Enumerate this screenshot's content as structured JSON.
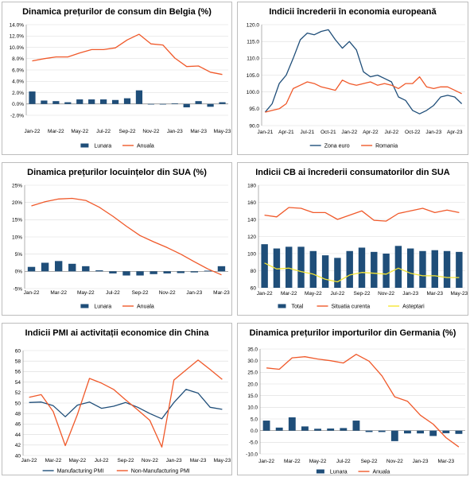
{
  "colors": {
    "blue": "#1f4e79",
    "orange": "#f0592a",
    "yellow": "#f5e533",
    "grid": "#d9d9d9",
    "axis": "#7f7f7f"
  },
  "chart_data": [
    {
      "id": "c1",
      "type": "bar+line",
      "title": "Dinamica prețurilor de consum din Belgia (%)",
      "x_ticks": [
        "Jan-22",
        "Mar-22",
        "May-22",
        "Jul-22",
        "Sep-22",
        "Nov-22",
        "Jan-23",
        "Mar-23",
        "May-23"
      ],
      "n": 17,
      "ylim": [
        -2,
        14
      ],
      "ystep": 2,
      "yfmt": "pct1",
      "grid": true,
      "legend_position": "bottom",
      "series": [
        {
          "name": "Lunara",
          "kind": "bar",
          "color": "#1f4e79",
          "values": [
            2.2,
            0.6,
            0.5,
            0.3,
            0.8,
            0.8,
            0.8,
            0.7,
            1.0,
            2.4,
            -0.1,
            -0.1,
            0.1,
            -0.6,
            0.5,
            -0.5,
            0.3
          ]
        },
        {
          "name": "Anuala",
          "kind": "line",
          "color": "#f0592a",
          "values": [
            7.6,
            8.0,
            8.3,
            8.3,
            9.0,
            9.6,
            9.6,
            9.9,
            11.3,
            12.3,
            10.6,
            10.4,
            8.1,
            6.6,
            6.7,
            5.6,
            5.2
          ]
        }
      ]
    },
    {
      "id": "c2",
      "type": "line",
      "title": "Indicii încrederii în economia europeană",
      "x_ticks": [
        "Jan-21",
        "Apr-21",
        "Jul-21",
        "Oct-21",
        "Jan-22",
        "Apr-22",
        "Jul-22",
        "Oct-22",
        "Jan-23",
        "Apr-23"
      ],
      "n": 29,
      "ylim": [
        90,
        120
      ],
      "ystep": 5,
      "yfmt": "dec1",
      "grid": true,
      "legend_position": "bottom",
      "series": [
        {
          "name": "Zona euro",
          "kind": "line",
          "color": "#1f4e79",
          "values": [
            94.0,
            96.5,
            102.5,
            105.0,
            110.0,
            115.5,
            117.5,
            117.0,
            118.0,
            118.5,
            115.5,
            113.0,
            115.0,
            112.5,
            106.0,
            104.5,
            105.0,
            104.0,
            103.0,
            98.5,
            97.5,
            94.5,
            93.5,
            94.5,
            96.0,
            98.5,
            99.0,
            98.5,
            96.5
          ]
        },
        {
          "name": "Romania",
          "kind": "line",
          "color": "#f0592a",
          "values": [
            94.0,
            94.5,
            95.0,
            96.5,
            101.0,
            102.0,
            103.0,
            102.5,
            101.5,
            101.0,
            100.5,
            103.5,
            102.5,
            102.0,
            102.5,
            103.0,
            102.0,
            102.5,
            102.0,
            101.0,
            102.5,
            102.5,
            104.5,
            101.5,
            101.0,
            101.5,
            101.5,
            100.5,
            99.5
          ]
        }
      ]
    },
    {
      "id": "c3",
      "type": "bar+line",
      "title": "Dinamica prețurilor locuințelor din SUA (%)",
      "x_ticks": [
        "Jan-22",
        "Mar-22",
        "May-22",
        "Jul-22",
        "Sep-22",
        "Nov-22",
        "Jan-23",
        "Mar-23"
      ],
      "n": 15,
      "ylim": [
        -5,
        25
      ],
      "ystep": 5,
      "yfmt": "pct0",
      "grid": true,
      "legend_position": "bottom",
      "series": [
        {
          "name": "Lunara",
          "kind": "bar",
          "color": "#1f4e79",
          "values": [
            1.3,
            2.5,
            3.0,
            2.2,
            1.5,
            0.3,
            -0.6,
            -1.2,
            -1.2,
            -0.8,
            -0.6,
            -0.5,
            -0.3,
            0.2,
            1.5
          ]
        },
        {
          "name": "Anuala",
          "kind": "line",
          "color": "#f0592a",
          "values": [
            19.0,
            20.2,
            21.0,
            21.2,
            20.6,
            18.6,
            16.0,
            13.1,
            10.4,
            8.6,
            6.9,
            5.0,
            2.8,
            0.7,
            -1.0
          ]
        }
      ]
    },
    {
      "id": "c4",
      "type": "bar+line",
      "title": "Indicii CB ai încrederii consumatorilor din SUA",
      "x_ticks": [
        "Jan-22",
        "Mar-22",
        "May-22",
        "Jul-22",
        "Sep-22",
        "Nov-22",
        "Jan-23",
        "Mar-23",
        "May-23"
      ],
      "n": 17,
      "ylim": [
        60,
        180
      ],
      "ystep": 20,
      "yfmt": "int",
      "grid": true,
      "legend_position": "bottom",
      "series": [
        {
          "name": "Total",
          "kind": "bar",
          "color": "#1f4e79",
          "base": 60,
          "values": [
            111,
            106,
            108,
            108,
            103,
            98,
            95,
            103,
            107,
            102,
            100,
            109,
            106,
            103,
            104,
            103,
            102
          ]
        },
        {
          "name": "Situatia curenta",
          "kind": "line",
          "color": "#f0592a",
          "values": [
            145,
            143,
            154,
            153,
            148,
            148,
            140,
            145,
            150,
            139,
            138,
            147,
            150,
            153,
            148,
            151,
            148
          ]
        },
        {
          "name": "Asteptari",
          "kind": "line",
          "color": "#f5e533",
          "values": [
            89,
            82,
            83,
            79,
            76,
            70,
            67,
            75,
            78,
            77,
            76,
            83,
            77,
            74,
            74,
            72,
            72
          ]
        }
      ]
    },
    {
      "id": "c5",
      "type": "line",
      "title": "Indicii PMI ai activitații economice din China",
      "x_ticks": [
        "Jan-22",
        "Mar-22",
        "May-22",
        "Jul-22",
        "Sep-22",
        "Nov-22",
        "Jan-23",
        "Mar-23",
        "May-23"
      ],
      "n": 17,
      "ylim": [
        40,
        60
      ],
      "ystep": 2,
      "yfmt": "int",
      "grid": true,
      "legend_position": "bottom",
      "series": [
        {
          "name": "Manufacturing PMI",
          "kind": "line",
          "color": "#1f4e79",
          "values": [
            50.1,
            50.2,
            49.5,
            47.4,
            49.6,
            50.2,
            49.0,
            49.4,
            50.1,
            49.2,
            48.0,
            47.0,
            50.1,
            52.6,
            51.9,
            49.2,
            48.8
          ]
        },
        {
          "name": "Non-Manufacturing PMI",
          "kind": "line",
          "color": "#f0592a",
          "values": [
            51.1,
            51.6,
            48.4,
            41.9,
            47.8,
            54.7,
            53.8,
            52.6,
            50.6,
            48.7,
            46.7,
            41.6,
            54.4,
            56.3,
            58.2,
            56.4,
            54.5
          ]
        }
      ]
    },
    {
      "id": "c6",
      "type": "bar+line",
      "title": "Dinamica prețurilor importurilor din Germania (%)",
      "x_ticks": [
        "Jan-22",
        "Mar-22",
        "May-22",
        "Jul-22",
        "Sep-22",
        "Nov-22",
        "Jan-23",
        "Mar-23"
      ],
      "n": 16,
      "ylim": [
        -10,
        35
      ],
      "ystep": 5,
      "yfmt": "dec1",
      "grid": true,
      "legend_position": "bottom",
      "series": [
        {
          "name": "Lunara",
          "kind": "bar",
          "color": "#1f4e79",
          "values": [
            4.3,
            1.3,
            5.7,
            1.8,
            0.8,
            0.9,
            1.1,
            4.3,
            -0.6,
            -0.6,
            -4.5,
            -1.2,
            -1.2,
            -2.3,
            -1.1,
            -1.4
          ]
        },
        {
          "name": "Anuala",
          "kind": "line",
          "color": "#f0592a",
          "values": [
            26.9,
            26.3,
            31.2,
            31.7,
            30.7,
            30.0,
            29.0,
            32.7,
            29.8,
            23.5,
            14.5,
            12.6,
            6.6,
            2.8,
            -3.0,
            -7.0
          ]
        }
      ]
    }
  ]
}
